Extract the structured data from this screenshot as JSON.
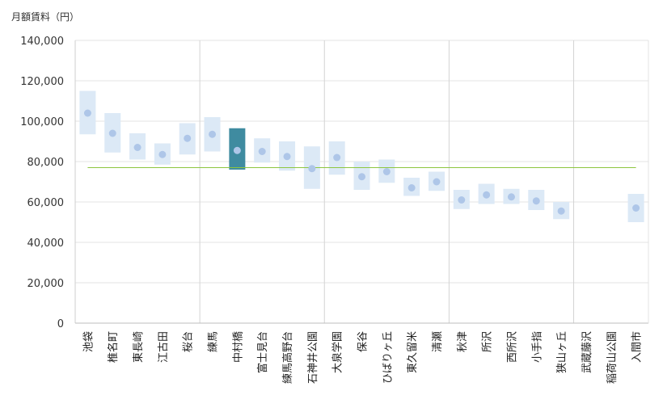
{
  "chart_data": {
    "type": "range-dot",
    "ylabel": "月額賃料（円）",
    "ylim": [
      0,
      140000
    ],
    "yticks": [
      0,
      20000,
      40000,
      60000,
      80000,
      100000,
      120000,
      140000
    ],
    "ytick_labels": [
      "0",
      "20,000",
      "40,000",
      "60,000",
      "80,000",
      "100,000",
      "120,000",
      "140,000"
    ],
    "reference_line": 77000,
    "highlight": "中村橋",
    "group_dividers_after": [
      "桜台",
      "石神井公園",
      "清瀬",
      "狭山ヶ丘"
    ],
    "categories": [
      "池袋",
      "椎名町",
      "東長崎",
      "江古田",
      "桜台",
      "練馬",
      "中村橋",
      "富士見台",
      "練馬高野台",
      "石神井公園",
      "大泉学園",
      "保谷",
      "ひばりヶ丘",
      "東久留米",
      "清瀬",
      "秋津",
      "所沢",
      "西所沢",
      "小手指",
      "狭山ヶ丘",
      "武蔵藤沢",
      "稲荷山公園",
      "入間市"
    ],
    "series": [
      {
        "name": "low",
        "values": [
          93500,
          84500,
          81000,
          78500,
          83500,
          85000,
          76000,
          79500,
          75500,
          66500,
          73500,
          66000,
          69500,
          63000,
          65500,
          56500,
          59000,
          59000,
          56000,
          51500,
          null,
          null,
          50000
        ]
      },
      {
        "name": "high",
        "values": [
          115000,
          104000,
          94000,
          89000,
          99000,
          102000,
          96500,
          91500,
          90000,
          87500,
          90000,
          80000,
          81000,
          72000,
          75000,
          66000,
          69000,
          66500,
          66000,
          60000,
          null,
          null,
          64000
        ]
      },
      {
        "name": "mean",
        "values": [
          104000,
          94000,
          87000,
          83500,
          91500,
          93500,
          85500,
          85000,
          82500,
          76500,
          82000,
          72500,
          75000,
          67000,
          70000,
          61000,
          63500,
          62500,
          60500,
          55500,
          null,
          null,
          57000
        ]
      }
    ]
  }
}
